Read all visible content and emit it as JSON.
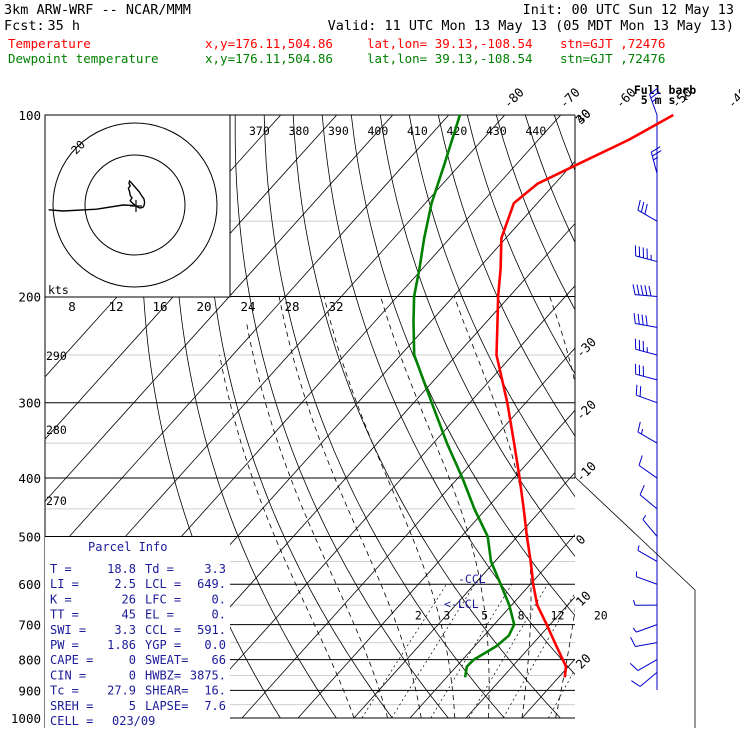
{
  "header": {
    "model": "3km ARW-WRF -- NCAR/MMM",
    "init": "Init: 00 UTC Sun 12 May 13",
    "fcst_label": "Fcst:",
    "fcst_value": "35 h",
    "valid": "Valid: 11 UTC Mon 13 May 13 (05 MDT Mon 13 May 13)",
    "temperature_label": "Temperature",
    "dewpoint_label": "Dewpoint temperature",
    "xy": "x,y=176.11,504.86",
    "latlon": "lat,lon= 39.13,-108.54",
    "stn": "stn=GJT ,72476"
  },
  "colors": {
    "temperature": "#ff0000",
    "dewpoint": "#008000",
    "parcel_text": "#1b1b9a",
    "wind": "#0000cc"
  },
  "full_barb_label": "Full barb",
  "full_barb_value": "5 m s⁻¹",
  "hodograph": {
    "kts_label": "kts",
    "ring_label": "20",
    "points_uv": [
      [
        0,
        0
      ],
      [
        -2,
        1.5
      ],
      [
        -4,
        3.5
      ],
      [
        -2.5,
        6
      ],
      [
        -4,
        8
      ],
      [
        -4.5,
        11
      ],
      [
        -5.5,
        14
      ],
      [
        -4,
        16
      ],
      [
        -5,
        18
      ],
      [
        -4.5,
        20
      ],
      [
        -3,
        18.5
      ],
      [
        0,
        15
      ],
      [
        3.5,
        11
      ],
      [
        6,
        7
      ],
      [
        7.5,
        5
      ],
      [
        8,
        2
      ],
      [
        7.5,
        -0.5
      ],
      [
        6.5,
        -2
      ],
      [
        4,
        -2.5
      ],
      [
        0,
        -0.5
      ],
      [
        -10,
        0
      ],
      [
        -32,
        -3.5
      ],
      [
        -60,
        -5
      ],
      [
        -72,
        -4
      ]
    ]
  },
  "parcel": {
    "title": "Parcel Info",
    "rows": [
      {
        "k1": "T  =",
        "v1": "18.8",
        "k2": "Td =",
        "v2": "3.3"
      },
      {
        "k1": "LI =",
        "v1": "2.5",
        "k2": "LCL =",
        "v2": "649."
      },
      {
        "k1": "K  =",
        "v1": "26",
        "k2": "LFC =",
        "v2": "0."
      },
      {
        "k1": "TT =",
        "v1": "45",
        "k2": "EL =",
        "v2": "0."
      },
      {
        "k1": "SWI =",
        "v1": "3.3",
        "k2": "CCL =",
        "v2": "591."
      },
      {
        "k1": "PW =",
        "v1": "1.86",
        "k2": "YGP =",
        "v2": "0.0"
      },
      {
        "k1": "CAPE =",
        "v1": "0",
        "k2": "SWEAT=",
        "v2": "66"
      },
      {
        "k1": "CIN =",
        "v1": "0",
        "k2": "HWBZ=",
        "v2": "3875."
      },
      {
        "k1": "Tc =",
        "v1": "27.9",
        "k2": "SHEAR=",
        "v2": "16."
      },
      {
        "k1": "SREH =",
        "v1": "5",
        "k2": "LAPSE=",
        "v2": "7.6"
      }
    ],
    "cell_label": "CELL =",
    "cell_value": "023/09"
  },
  "markers": {
    "ccl": "-CCL",
    "lcl": "<-LCL"
  },
  "chart_data": {
    "type": "line",
    "y_axis": "pressure (hPa), log scale",
    "ylim": [
      1000,
      100
    ],
    "xlim": [
      -40,
      40
    ],
    "pressure_ticks": [
      100,
      200,
      300,
      400,
      500,
      600,
      700,
      800,
      900,
      1000
    ],
    "isotherm_ticks": [
      -80,
      -70,
      -60,
      -50,
      -40,
      -30,
      -20,
      -10,
      0,
      10,
      20,
      30,
      40
    ],
    "isentrope_ticks": [
      270,
      280,
      290,
      370,
      380,
      390,
      400,
      410,
      420,
      430,
      440
    ],
    "mixing_ratio_ticks": [
      2,
      3,
      5,
      8,
      12,
      20
    ],
    "hodo_speed_ticks": [
      8,
      12,
      16,
      20,
      24,
      28,
      32
    ],
    "series": [
      {
        "name": "Temperature",
        "points": [
          [
            856,
            21.1
          ],
          [
            822,
            19.6
          ],
          [
            800,
            17.9
          ],
          [
            760,
            14.6
          ],
          [
            700,
            9.4
          ],
          [
            650,
            4.6
          ],
          [
            600,
            0.5
          ],
          [
            550,
            -3.6
          ],
          [
            500,
            -8.3
          ],
          [
            450,
            -13.3
          ],
          [
            400,
            -19.0
          ],
          [
            350,
            -25.6
          ],
          [
            300,
            -33.3
          ],
          [
            250,
            -42.9
          ],
          [
            220,
            -48.1
          ],
          [
            200,
            -52.0
          ],
          [
            180,
            -56.0
          ],
          [
            160,
            -60.8
          ],
          [
            140,
            -64.2
          ],
          [
            130,
            -63.1
          ],
          [
            120,
            -58.7
          ],
          [
            110,
            -53.9
          ],
          [
            100,
            -49.9
          ]
        ]
      },
      {
        "name": "Dewpoint temperature",
        "points": [
          [
            856,
            3.3
          ],
          [
            822,
            1.9
          ],
          [
            800,
            2.0
          ],
          [
            760,
            3.9
          ],
          [
            730,
            4.4
          ],
          [
            700,
            3.6
          ],
          [
            650,
            -0.4
          ],
          [
            600,
            -5.3
          ],
          [
            550,
            -10.7
          ],
          [
            500,
            -15.3
          ],
          [
            450,
            -22.1
          ],
          [
            400,
            -29.2
          ],
          [
            350,
            -37.6
          ],
          [
            300,
            -46.8
          ],
          [
            250,
            -57.6
          ],
          [
            220,
            -63.1
          ],
          [
            200,
            -67.0
          ],
          [
            180,
            -70.5
          ],
          [
            160,
            -74.6
          ],
          [
            140,
            -78.9
          ],
          [
            120,
            -83.0
          ],
          [
            100,
            -88.0
          ]
        ]
      }
    ],
    "wind_profile": [
      {
        "p": 100,
        "spd": 13,
        "dir": 340
      },
      {
        "p": 125,
        "spd": 14,
        "dir": 345
      },
      {
        "p": 150,
        "spd": 16,
        "dir": 300
      },
      {
        "p": 175,
        "spd": 24,
        "dir": 285
      },
      {
        "p": 200,
        "spd": 27,
        "dir": 275
      },
      {
        "p": 225,
        "spd": 22,
        "dir": 280
      },
      {
        "p": 250,
        "spd": 18,
        "dir": 285
      },
      {
        "p": 275,
        "spd": 15,
        "dir": 285
      },
      {
        "p": 300,
        "spd": 12,
        "dir": 290
      },
      {
        "p": 350,
        "spd": 8,
        "dir": 300
      },
      {
        "p": 400,
        "spd": 6,
        "dir": 305
      },
      {
        "p": 450,
        "spd": 5,
        "dir": 310
      },
      {
        "p": 500,
        "spd": 4,
        "dir": 320
      },
      {
        "p": 550,
        "spd": 4,
        "dir": 300
      },
      {
        "p": 600,
        "spd": 3,
        "dir": 290
      },
      {
        "p": 650,
        "spd": 3,
        "dir": 270
      },
      {
        "p": 700,
        "spd": 4,
        "dir": 250
      },
      {
        "p": 750,
        "spd": 5,
        "dir": 260
      },
      {
        "p": 800,
        "spd": 6,
        "dir": 240
      },
      {
        "p": 840,
        "spd": 7,
        "dir": 230
      }
    ]
  }
}
